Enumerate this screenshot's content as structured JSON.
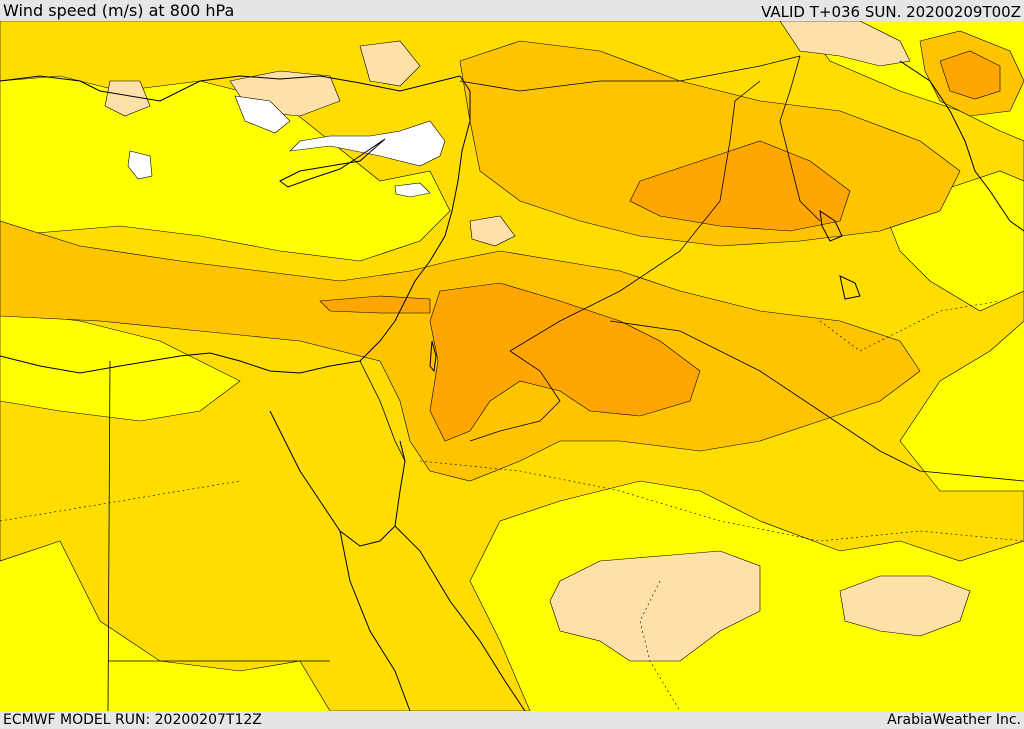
{
  "header": {
    "title": "Wind speed (m/s) at 800 hPa",
    "valid": "VALID T+036 SUN. 20200209T00Z"
  },
  "footer": {
    "model_run": "ECMWF MODEL RUN: 20200207T12Z",
    "credit": "ArabiaWeather Inc."
  },
  "colors": {
    "band_0": "#ffffff",
    "band_1": "#ffe0a8",
    "band_2": "#ffff00",
    "band_3": "#ffdd00",
    "band_4": "#ffc400",
    "band_5": "#ffa600",
    "band_6": "#ff8c00",
    "coast": "#000000",
    "border": "#000000"
  }
}
